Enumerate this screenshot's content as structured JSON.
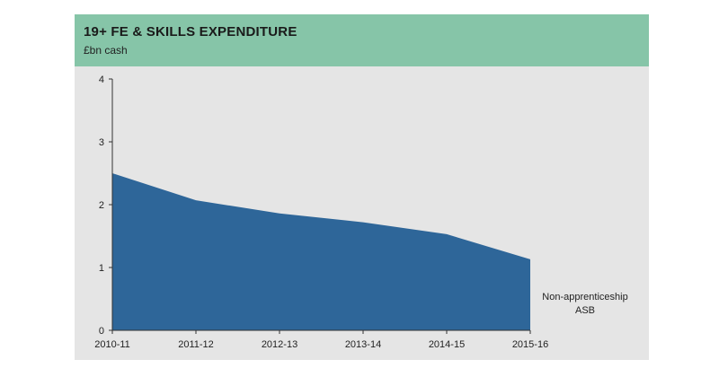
{
  "chart_data": {
    "type": "area",
    "title": "19+ FE & SKILLS EXPENDITURE",
    "subtitle": "£bn cash",
    "categories": [
      "2010-11",
      "2011-12",
      "2012-13",
      "2013-14",
      "2014-15",
      "2015-16"
    ],
    "series": [
      {
        "name": "Non-apprenticeship ASB",
        "values": [
          2.5,
          2.07,
          1.86,
          1.72,
          1.53,
          1.13
        ]
      }
    ],
    "series_label_lines": [
      "Non-apprenticeship",
      "ASB"
    ],
    "ylim": [
      0,
      4
    ],
    "yticks": [
      0,
      1,
      2,
      3,
      4
    ],
    "grid": false,
    "legend": "none",
    "colors": {
      "area": "#2e6699",
      "header": "#86c5a8",
      "panel": "#e5e5e5"
    }
  }
}
